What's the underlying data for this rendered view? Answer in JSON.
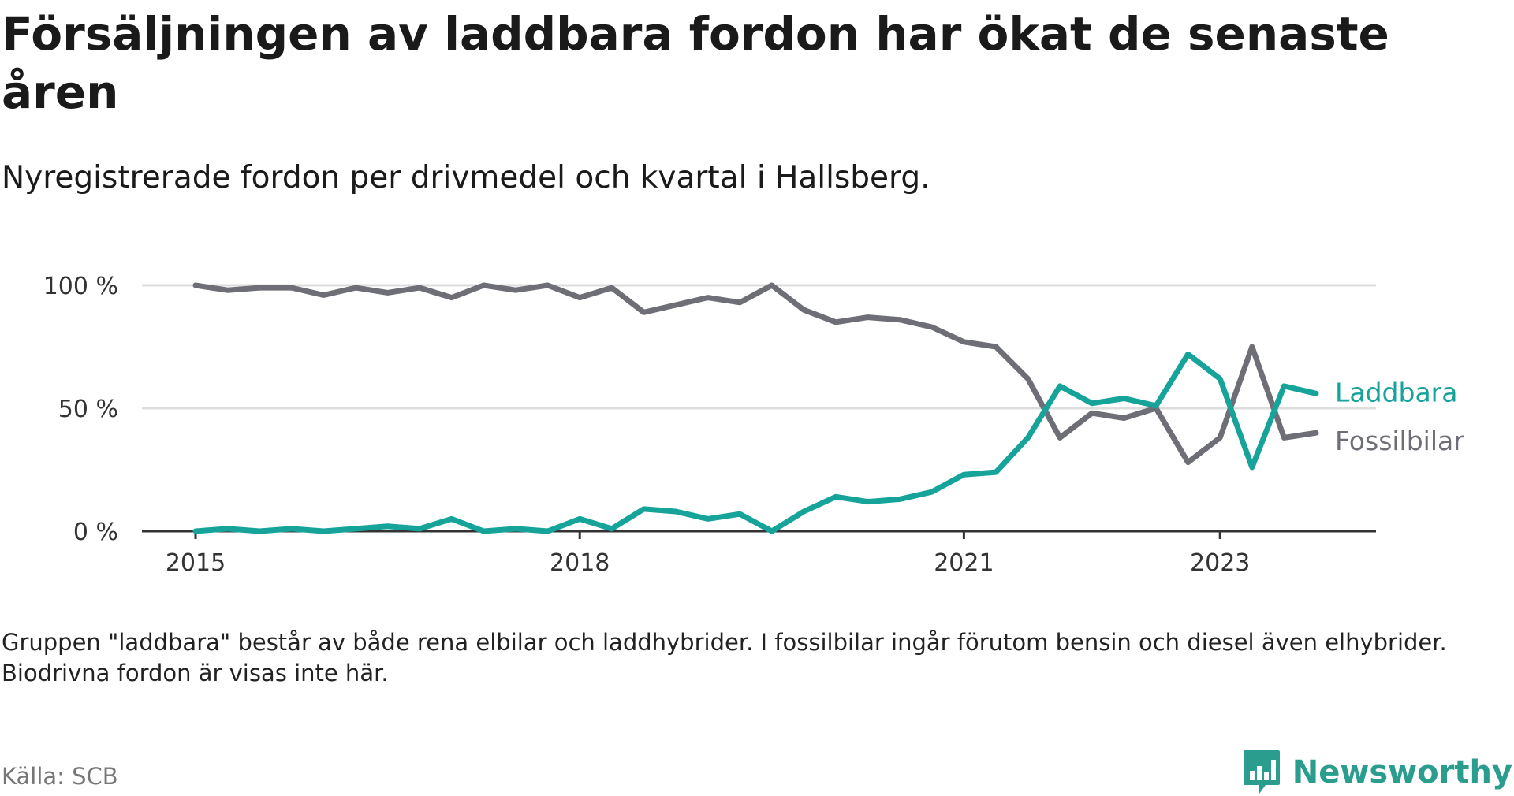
{
  "title": "Försäljningen av laddbara fordon har ökat de senaste åren",
  "subtitle": "Nyregistrerade fordon per drivmedel och kvartal i Hallsberg.",
  "note": "Gruppen \"laddbara\" består av både rena elbilar och laddhybrider. I fossilbilar ingår förutom bensin och diesel även elhybrider. Biodrivna fordon är visas inte här.",
  "source": "Källa: SCB",
  "brand": "Newsworthy",
  "colors": {
    "laddbara": "#16a39a",
    "fossil": "#6e6e76",
    "grid": "#dddddd",
    "axis": "#333333"
  },
  "chart_data": {
    "type": "line",
    "title": "Försäljningen av laddbara fordon har ökat de senaste åren",
    "xlabel": "",
    "ylabel": "",
    "ylim": [
      0,
      100
    ],
    "yticks": [
      0,
      50,
      100
    ],
    "ytick_labels": [
      "0 %",
      "50 %",
      "100 %"
    ],
    "xtick_labels": [
      "2015",
      "2018",
      "2021",
      "2023"
    ],
    "xtick_index": [
      0,
      12,
      24,
      32
    ],
    "x": [
      "2015 K1",
      "2015 K2",
      "2015 K3",
      "2015 K4",
      "2016 K1",
      "2016 K2",
      "2016 K3",
      "2016 K4",
      "2017 K1",
      "2017 K2",
      "2017 K3",
      "2017 K4",
      "2018 K1",
      "2018 K2",
      "2018 K3",
      "2018 K4",
      "2019 K1",
      "2019 K2",
      "2019 K3",
      "2019 K4",
      "2020 K1",
      "2020 K2",
      "2020 K3",
      "2020 K4",
      "2021 K1",
      "2021 K2",
      "2021 K3",
      "2021 K4",
      "2022 K1",
      "2022 K2",
      "2022 K3",
      "2022 K4",
      "2023 K1",
      "2023 K2",
      "2023 K3",
      "2023 K4"
    ],
    "series": [
      {
        "name": "Laddbara",
        "key": "laddbara",
        "values": [
          0,
          1,
          0,
          1,
          0,
          1,
          2,
          1,
          5,
          0,
          1,
          0,
          5,
          1,
          9,
          8,
          5,
          7,
          0,
          8,
          14,
          12,
          13,
          16,
          23,
          24,
          38,
          59,
          52,
          54,
          51,
          72,
          62,
          26,
          59,
          56
        ]
      },
      {
        "name": "Fossilbilar",
        "key": "fossil",
        "values": [
          100,
          98,
          99,
          99,
          96,
          99,
          97,
          99,
          95,
          100,
          98,
          100,
          95,
          99,
          89,
          92,
          95,
          93,
          100,
          90,
          85,
          87,
          86,
          83,
          77,
          75,
          62,
          38,
          48,
          46,
          50,
          28,
          38,
          75,
          38,
          40
        ]
      }
    ]
  }
}
